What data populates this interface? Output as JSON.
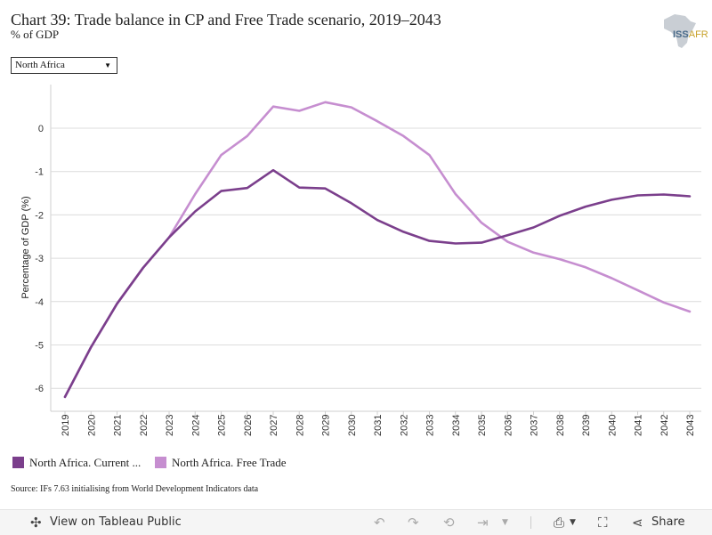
{
  "header": {
    "title": "Chart 39: Trade balance in CP and Free Trade scenario, 2019–2043",
    "subtitle": "% of GDP"
  },
  "logo": {
    "text_main": "ISS",
    "text_accent": "AFR"
  },
  "filter": {
    "selected": "North Africa"
  },
  "chart_data": {
    "type": "line",
    "title": "Chart 39: Trade balance in CP and Free Trade scenario, 2019–2043",
    "subtitle": "% of GDP",
    "xlabel": "",
    "ylabel": "Percentage of GDP (%)",
    "x": [
      "2019",
      "2020",
      "2021",
      "2022",
      "2023",
      "2024",
      "2025",
      "2026",
      "2027",
      "2028",
      "2029",
      "2030",
      "2031",
      "2032",
      "2033",
      "2034",
      "2035",
      "2036",
      "2037",
      "2038",
      "2039",
      "2040",
      "2041",
      "2042",
      "2043"
    ],
    "ylim": [
      -6.6,
      1.0
    ],
    "yticks": [
      0,
      -1,
      -2,
      -3,
      -4,
      -5,
      -6
    ],
    "grid": true,
    "legend_position": "bottom-left",
    "series": [
      {
        "name": "North Africa. Current ...",
        "color": "#7b3f8c",
        "values": [
          -6.2,
          -5.05,
          -4.05,
          -3.22,
          -2.52,
          -1.92,
          -1.45,
          -1.38,
          -0.97,
          -1.37,
          -1.39,
          -1.73,
          -2.12,
          -2.39,
          -2.6,
          -2.66,
          -2.64,
          -2.47,
          -2.29,
          -2.02,
          -1.81,
          -1.65,
          -1.55,
          -1.53,
          -1.57
        ]
      },
      {
        "name": "North Africa. Free Trade",
        "color": "#c68ed0",
        "values": [
          -6.2,
          -5.05,
          -4.05,
          -3.22,
          -2.52,
          -1.52,
          -0.62,
          -0.18,
          0.5,
          0.4,
          0.6,
          0.48,
          0.16,
          -0.18,
          -0.62,
          -1.52,
          -2.18,
          -2.62,
          -2.87,
          -3.02,
          -3.21,
          -3.46,
          -3.74,
          -4.02,
          -4.23
        ]
      }
    ]
  },
  "source": "Source: IFs 7.63 initialising from World Development Indicators data",
  "toolbar": {
    "view_label": "View on Tableau Public",
    "share_label": "Share"
  }
}
